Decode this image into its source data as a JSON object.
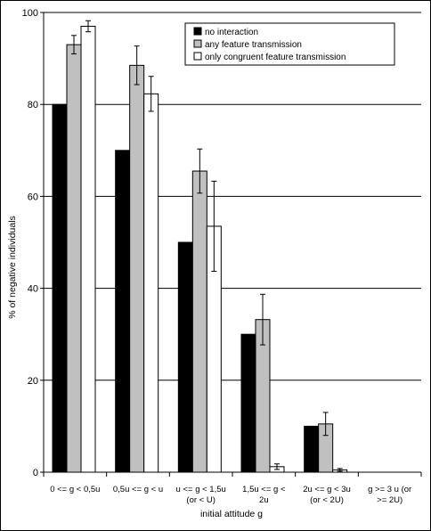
{
  "chart_data": {
    "type": "bar",
    "title": "",
    "xlabel": "initial attitude g",
    "ylabel": "% of negative individuals",
    "ylim": [
      0,
      100
    ],
    "yticks": [
      0,
      20,
      40,
      60,
      80,
      100
    ],
    "grid": true,
    "legend_position": "top-right",
    "categories": [
      [
        "0 <= g < 0,5u"
      ],
      [
        "0,5u <= g < u"
      ],
      [
        "u <= g < 1,5u",
        "(or < U)"
      ],
      [
        "1,5u <= g <",
        "2u"
      ],
      [
        "2u <= g < 3u",
        "(or < 2U)"
      ],
      [
        "g >= 3 u (or",
        ">= 2U)"
      ]
    ],
    "series": [
      {
        "name": "no interaction",
        "color": "#000000",
        "values": [
          80,
          70,
          50,
          30,
          10,
          0
        ],
        "errors": [
          null,
          null,
          null,
          null,
          null,
          null
        ]
      },
      {
        "name": "any feature transmission",
        "color": "#c0c0c0",
        "values": [
          93,
          88.5,
          65.5,
          33.2,
          10.5,
          0
        ],
        "errors": [
          2,
          4.2,
          4.8,
          5.5,
          2.5,
          null
        ]
      },
      {
        "name": "only congruent feature transmission",
        "color": "#ffffff",
        "values": [
          97,
          82.3,
          53.5,
          1.2,
          0.5,
          0
        ],
        "errors": [
          1.2,
          3.8,
          9.8,
          0.6,
          0.3,
          null
        ]
      }
    ]
  }
}
